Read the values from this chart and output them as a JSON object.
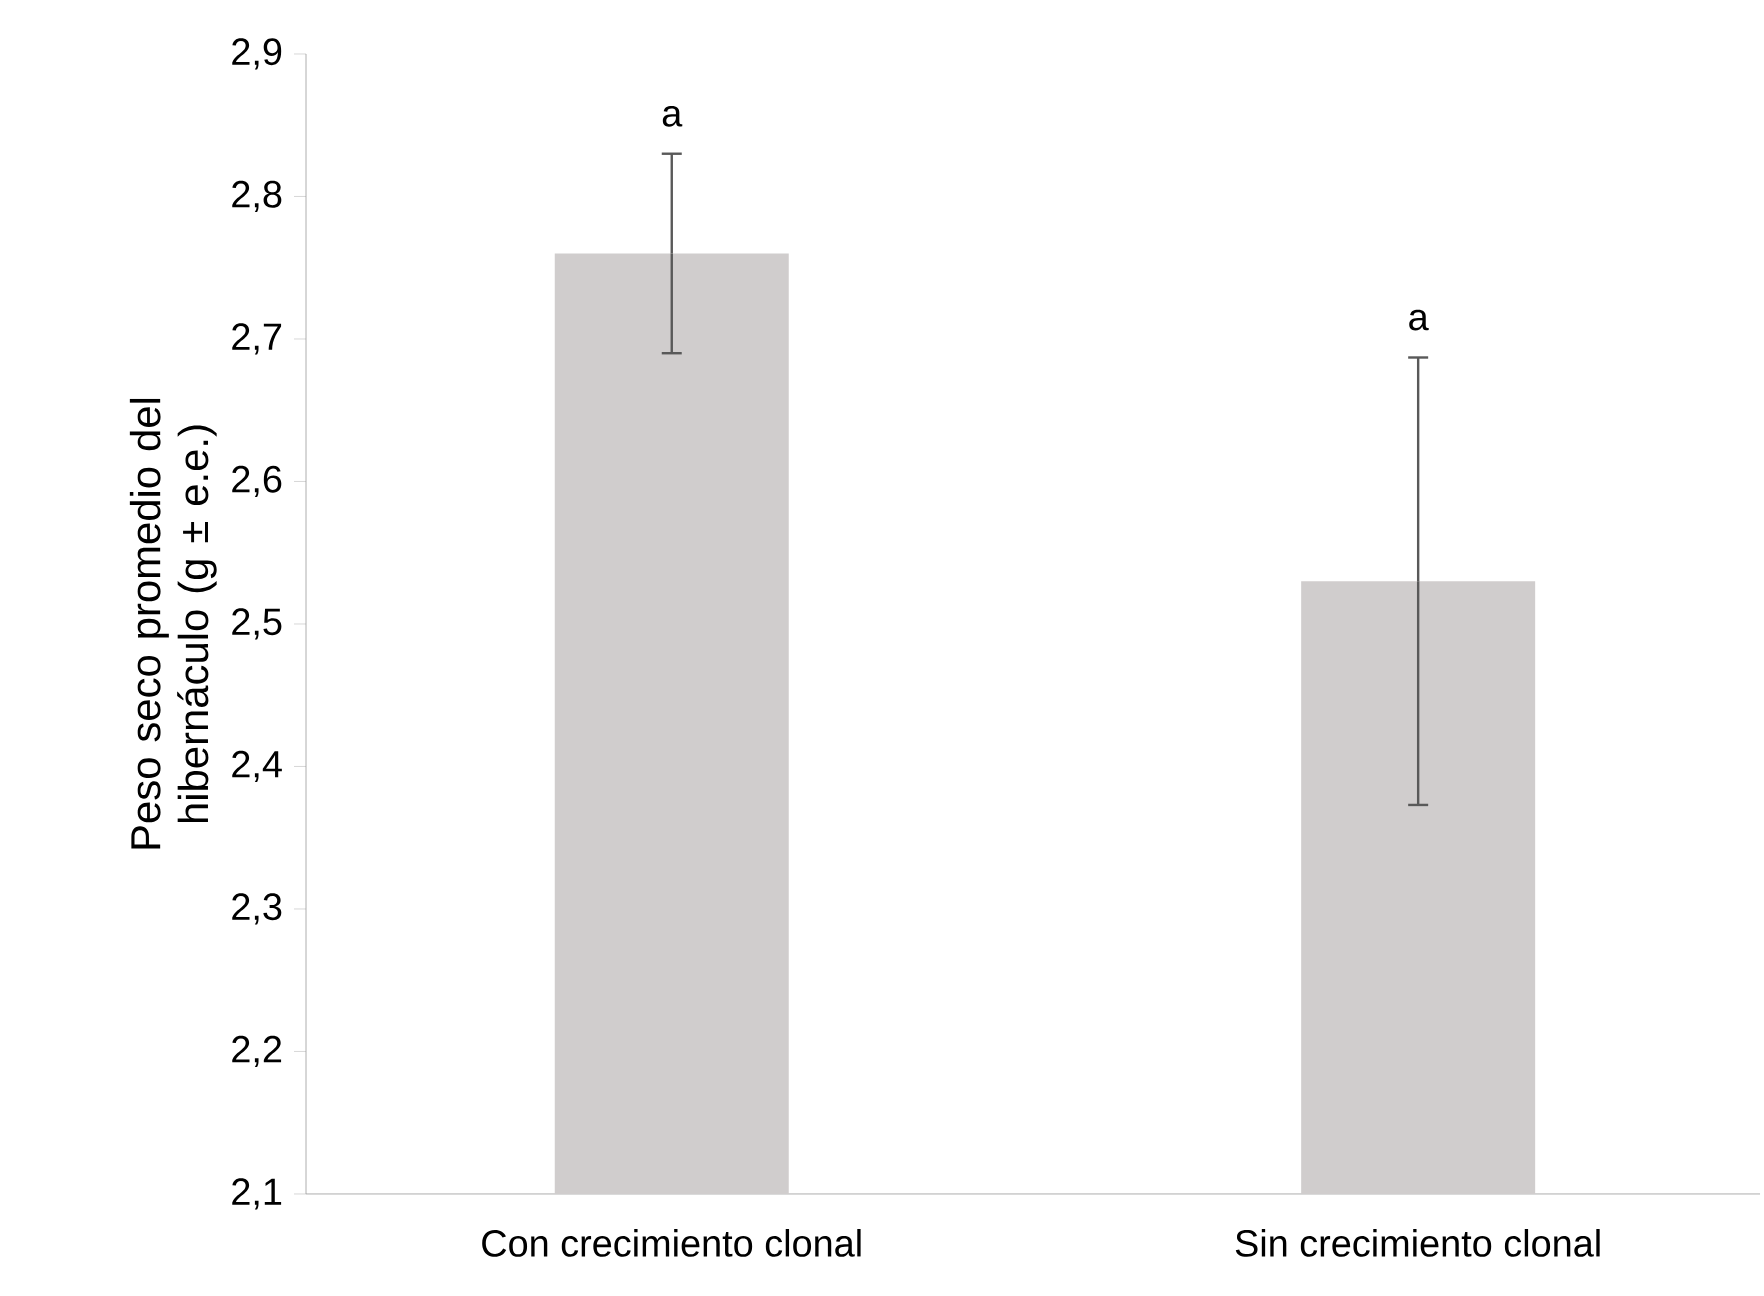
{
  "chart_data": {
    "type": "bar",
    "ylabel": "Peso seco promedio del hibernáculo (g ± e.e.)",
    "categories": [
      "Con crecimiento clonal",
      "Sin crecimiento clonal"
    ],
    "values": [
      2.76,
      2.53
    ],
    "errors": [
      0.07,
      0.157
    ],
    "color": "#d0cdcd",
    "ylim": [
      2.1,
      2.9
    ],
    "yticks": [
      {
        "value": 2.1,
        "label": "2,1"
      },
      {
        "value": 2.2,
        "label": "2,2"
      },
      {
        "value": 2.3,
        "label": "2,3"
      },
      {
        "value": 2.4,
        "label": "2,4"
      },
      {
        "value": 2.5,
        "label": "2,5"
      },
      {
        "value": 2.6,
        "label": "2,6"
      },
      {
        "value": 2.7,
        "label": "2,7"
      },
      {
        "value": 2.8,
        "label": "2,8"
      },
      {
        "value": 2.9,
        "label": "2,9"
      }
    ],
    "annotations": [
      "a",
      "a"
    ],
    "grid": false
  }
}
